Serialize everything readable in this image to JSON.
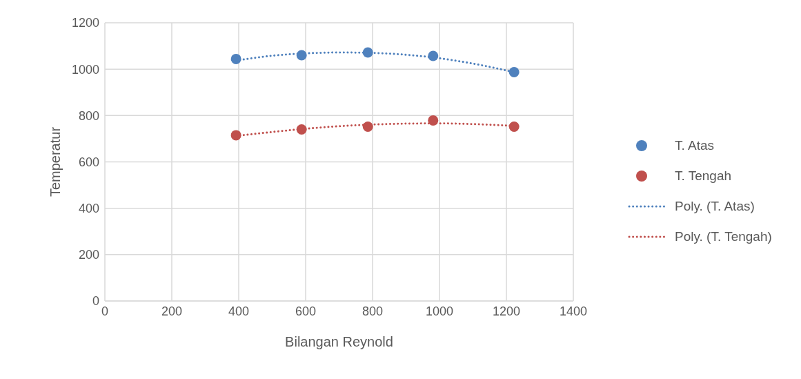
{
  "chart_data": {
    "type": "scatter",
    "xlabel": "Bilangan Reynold",
    "ylabel": "Temperatur",
    "xlim": [
      0,
      1400
    ],
    "xticks": [
      0,
      200,
      400,
      600,
      800,
      1000,
      1200,
      1400
    ],
    "ylim": [
      0,
      1200
    ],
    "yticks": [
      0,
      200,
      400,
      600,
      800,
      1000,
      1200
    ],
    "grid": true,
    "legend": "right",
    "series": [
      {
        "name": "T. Atas",
        "marker": "circle",
        "color": "#4f81bd",
        "x": [
          392,
          588,
          786,
          981,
          1223
        ],
        "values": [
          1044,
          1060,
          1072,
          1057,
          987
        ]
      },
      {
        "name": "T. Tengah",
        "marker": "circle",
        "color": "#c0504d",
        "x": [
          392,
          588,
          786,
          981,
          1223
        ],
        "values": [
          715,
          740,
          752,
          779,
          752
        ]
      },
      {
        "name": "Poly. (T. Atas)",
        "type": "line",
        "marker": "none",
        "line_style": "dotted",
        "color": "#4f81bd",
        "x": [
          392,
          500,
          600,
          700,
          800,
          900,
          1000,
          1100,
          1223
        ],
        "values": [
          1037,
          1058,
          1068,
          1072,
          1070,
          1062,
          1047,
          1024,
          987
        ]
      },
      {
        "name": "Poly. (T. Tengah)",
        "type": "line",
        "marker": "none",
        "line_style": "dotted",
        "color": "#c0504d",
        "x": [
          392,
          500,
          600,
          700,
          800,
          900,
          1000,
          1100,
          1223
        ],
        "values": [
          712,
          729,
          743,
          754,
          761,
          765,
          766,
          763,
          755
        ]
      }
    ]
  }
}
